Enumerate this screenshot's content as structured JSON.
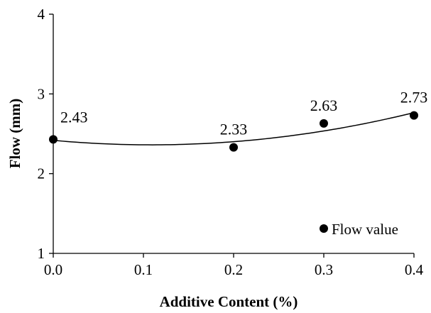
{
  "chart_data": {
    "type": "scatter",
    "title": "",
    "xlabel": "Additive Content (%)",
    "ylabel": "Flow (mm)",
    "xlim": [
      0.0,
      0.4
    ],
    "ylim": [
      1,
      4
    ],
    "x_ticks": [
      "0.0",
      "0.1",
      "0.2",
      "0.3",
      "0.4"
    ],
    "y_ticks": [
      "1",
      "2",
      "3",
      "4"
    ],
    "grid": false,
    "legend": {
      "position": "bottom-right",
      "entries": [
        "Flow value"
      ]
    },
    "series": [
      {
        "name": "Flow value",
        "marker": "filled-circle",
        "color": "#000000",
        "x": [
          0.0,
          0.2,
          0.3,
          0.4
        ],
        "y": [
          2.43,
          2.33,
          2.63,
          2.73
        ],
        "labels": [
          "2.43",
          "2.33",
          "2.63",
          "2.73"
        ]
      }
    ],
    "trendline": {
      "type": "polynomial",
      "order": 2,
      "color": "#000000"
    }
  }
}
